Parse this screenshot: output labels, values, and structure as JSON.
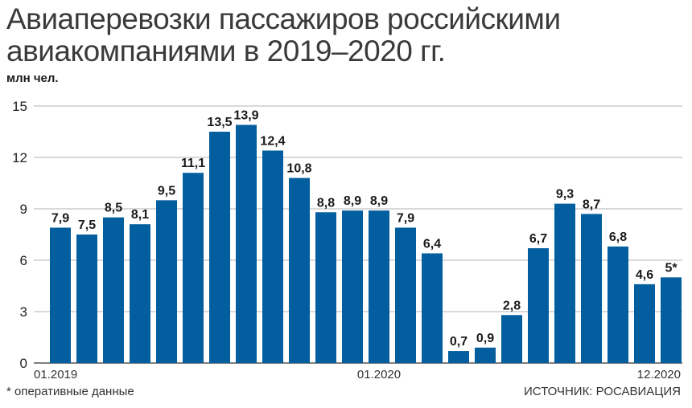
{
  "header": {
    "title_line1": "Авиаперевозки пассажиров российскими",
    "title_line2": "авиакомпаниями в 2019–2020 гг.",
    "units": "млн чел."
  },
  "footer": {
    "note": "* оперативные данные",
    "source": "ИСТОЧНИК: РОСАВИАЦИЯ"
  },
  "colors": {
    "bar": "#035ea0",
    "grid": "#9a9a9a",
    "axis": "#333333"
  },
  "chart_data": {
    "type": "bar",
    "title": "Авиаперевозки пассажиров российскими авиакомпаниями в 2019–2020 гг.",
    "ylabel": "млн чел.",
    "ylim": [
      0,
      15
    ],
    "yticks": [
      0,
      3,
      6,
      9,
      12,
      15
    ],
    "grid": true,
    "values": [
      7.9,
      7.5,
      8.5,
      8.1,
      9.5,
      11.1,
      13.5,
      13.9,
      12.4,
      10.8,
      8.8,
      8.9,
      8.9,
      7.9,
      6.4,
      0.7,
      0.9,
      2.8,
      6.7,
      9.3,
      8.7,
      6.8,
      4.6,
      5
    ],
    "value_labels": [
      "7,9",
      "7,5",
      "8,5",
      "8,1",
      "9,5",
      "11,1",
      "13,5",
      "13,9",
      "12,4",
      "10,8",
      "8,8",
      "8,9",
      "8,9",
      "7,9",
      "6,4",
      "0,7",
      "0,9",
      "2,8",
      "6,7",
      "9,3",
      "8,7",
      "6,8",
      "4,6",
      "5*"
    ],
    "x_tick_labels": [
      {
        "index": 0,
        "label": "01.2019"
      },
      {
        "index": 12,
        "label": "01.2020"
      },
      {
        "index": 23,
        "label": "12.2020"
      }
    ]
  }
}
